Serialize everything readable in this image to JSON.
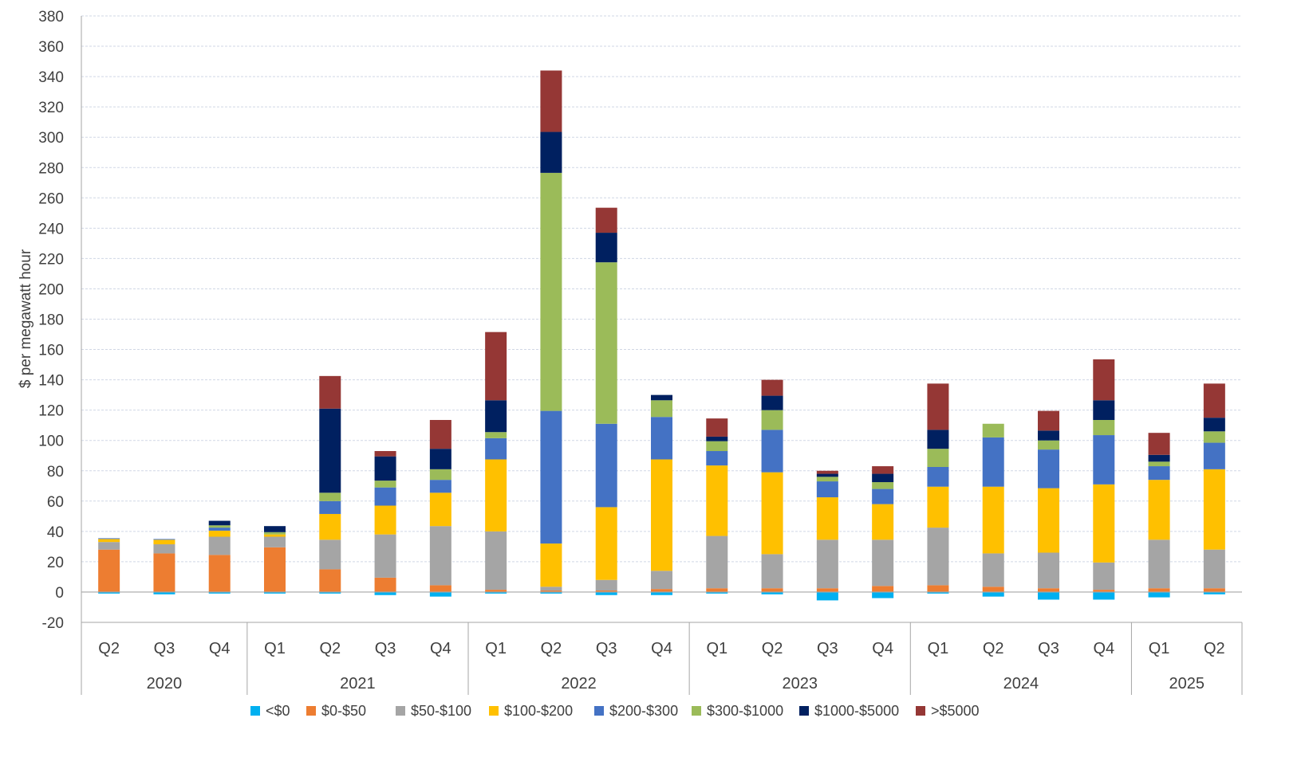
{
  "chart_data": {
    "type": "bar",
    "stacked": true,
    "ylabel": "$ per megawatt hour",
    "xlabel": "",
    "ylim": [
      -20,
      380
    ],
    "ytick_step": 20,
    "grid": true,
    "legend_position": "bottom",
    "quarters": [
      "Q2",
      "Q3",
      "Q4",
      "Q1",
      "Q2",
      "Q3",
      "Q4",
      "Q1",
      "Q2",
      "Q3",
      "Q4",
      "Q1",
      "Q2",
      "Q3",
      "Q4",
      "Q1",
      "Q2",
      "Q3",
      "Q4",
      "Q1",
      "Q2"
    ],
    "year_groups": [
      {
        "label": "2020",
        "count": 3
      },
      {
        "label": "2021",
        "count": 4
      },
      {
        "label": "2022",
        "count": 4
      },
      {
        "label": "2023",
        "count": 4
      },
      {
        "label": "2024",
        "count": 4
      },
      {
        "label": "2025",
        "count": 2
      }
    ],
    "series": [
      {
        "name": "<$0",
        "color": "#00b0f0",
        "values": [
          -1,
          -1.5,
          -1,
          -1,
          -1,
          -2,
          -3,
          -1,
          -1,
          -2,
          -2,
          -1,
          -1.5,
          -5.5,
          -4,
          -1,
          -3,
          -5,
          -5,
          -3.5,
          -1.5
        ]
      },
      {
        "name": "$0-$50",
        "color": "#ed7d31",
        "values": [
          28,
          25.5,
          24.5,
          29.5,
          15,
          9.5,
          4.5,
          1.5,
          1,
          1,
          2,
          2.5,
          2.5,
          2.5,
          4,
          4.5,
          3.5,
          2.5,
          1.5,
          2.5,
          2.5
        ]
      },
      {
        "name": "$50-$100",
        "color": "#a5a5a5",
        "values": [
          5,
          6,
          12,
          7,
          19.5,
          28.5,
          39,
          38.5,
          2.5,
          7,
          12,
          34.5,
          22.5,
          32,
          30.5,
          38,
          22,
          23.5,
          18,
          32,
          25.5
        ]
      },
      {
        "name": "$100-$200",
        "color": "#ffc000",
        "values": [
          2,
          3,
          4,
          1.5,
          17,
          19,
          22,
          47.5,
          28.5,
          48,
          73.5,
          46.5,
          54,
          28,
          23.5,
          27,
          44,
          42.5,
          51.5,
          39.5,
          53
        ]
      },
      {
        "name": "$200-$300",
        "color": "#4472c4",
        "values": [
          0.5,
          0.5,
          2,
          0,
          8.5,
          12,
          8.5,
          14,
          87.5,
          55,
          28,
          9.5,
          28,
          10.5,
          10,
          13,
          32.5,
          25.5,
          32.5,
          9,
          17.5
        ]
      },
      {
        "name": "$300-$1000",
        "color": "#9bbb59",
        "values": [
          0,
          0,
          1.5,
          1.5,
          5.5,
          4.5,
          7,
          4,
          157,
          106.5,
          11,
          6.5,
          13,
          3,
          4.5,
          12,
          9,
          6,
          10,
          3,
          7.5
        ]
      },
      {
        "name": "$1000-$5000",
        "color": "#002060",
        "values": [
          0,
          0,
          3,
          4,
          55.5,
          16,
          13.5,
          21,
          27,
          19.5,
          3.5,
          3,
          9.5,
          2,
          5.5,
          12.5,
          0,
          6.5,
          13,
          4.5,
          9
        ]
      },
      {
        "name": ">$5000",
        "color": "#953735",
        "values": [
          0,
          0,
          0,
          0,
          21.5,
          3.5,
          19,
          45,
          40.5,
          16.5,
          0,
          12,
          10.5,
          2,
          5,
          30.5,
          0,
          13,
          27,
          14.5,
          22.5
        ]
      }
    ]
  }
}
